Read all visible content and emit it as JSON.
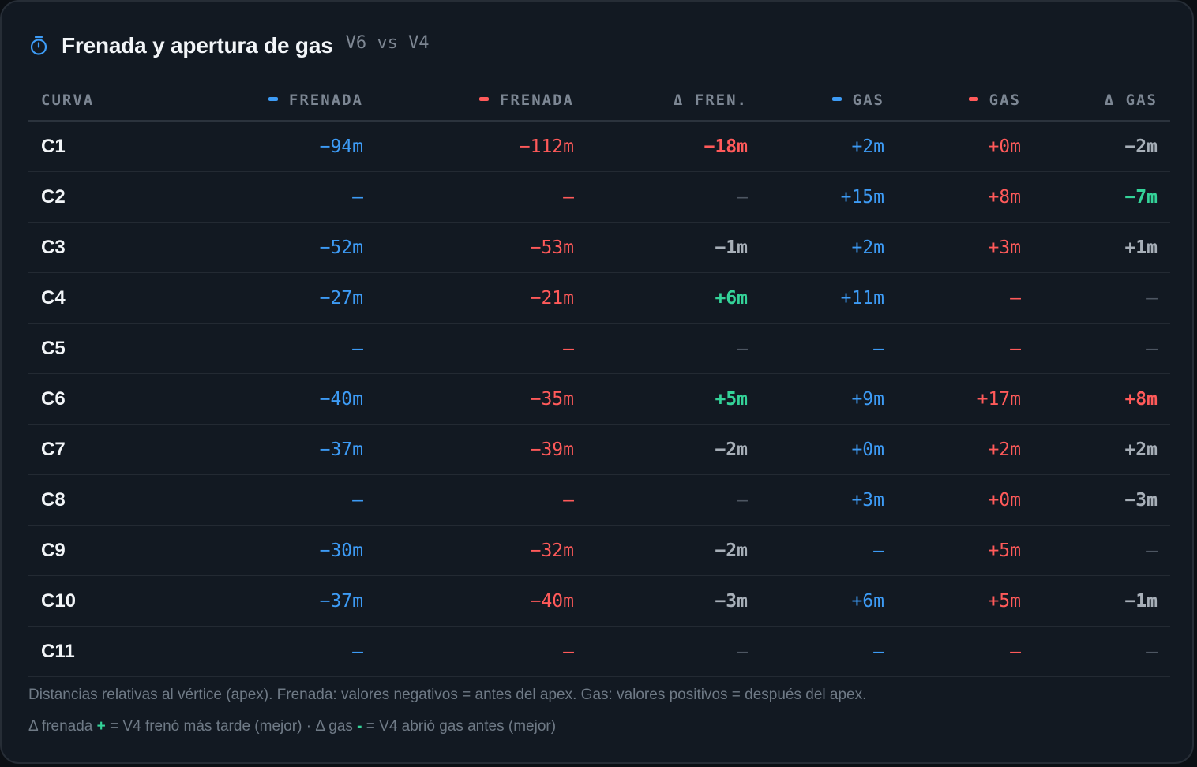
{
  "header": {
    "title": "Frenada y apertura de gas",
    "subtitle": "V6 vs V4",
    "icon": "stopwatch-icon"
  },
  "colors": {
    "blue": "#3d9bf5",
    "red": "#ff5a5a",
    "green": "#34d399",
    "gray": "#9aa3ad"
  },
  "columns": {
    "curva": "CURVA",
    "frenada_v6": "FRENADA",
    "frenada_v4": "FRENADA",
    "delta_fren": "Δ FREN.",
    "gas_v6": "GAS",
    "gas_v4": "GAS",
    "delta_gas": "Δ GAS"
  },
  "rows": [
    {
      "curve": "C1",
      "fren_v6": "−94m",
      "fren_v4": "−112m",
      "d_fren": "−18m",
      "d_fren_tone": "redbold",
      "gas_v6": "+2m",
      "gas_v4": "+0m",
      "d_gas": "−2m",
      "d_gas_tone": "graybold"
    },
    {
      "curve": "C2",
      "fren_v6": "—",
      "fren_v4": "—",
      "d_fren": "—",
      "d_fren_tone": "dim",
      "gas_v6": "+15m",
      "gas_v4": "+8m",
      "d_gas": "−7m",
      "d_gas_tone": "green"
    },
    {
      "curve": "C3",
      "fren_v6": "−52m",
      "fren_v4": "−53m",
      "d_fren": "−1m",
      "d_fren_tone": "graybold",
      "gas_v6": "+2m",
      "gas_v4": "+3m",
      "d_gas": "+1m",
      "d_gas_tone": "graybold"
    },
    {
      "curve": "C4",
      "fren_v6": "−27m",
      "fren_v4": "−21m",
      "d_fren": "+6m",
      "d_fren_tone": "green",
      "gas_v6": "+11m",
      "gas_v4": "—",
      "d_gas": "—",
      "d_gas_tone": "dim"
    },
    {
      "curve": "C5",
      "fren_v6": "—",
      "fren_v4": "—",
      "d_fren": "—",
      "d_fren_tone": "dim",
      "gas_v6": "—",
      "gas_v4": "—",
      "d_gas": "—",
      "d_gas_tone": "dim"
    },
    {
      "curve": "C6",
      "fren_v6": "−40m",
      "fren_v4": "−35m",
      "d_fren": "+5m",
      "d_fren_tone": "green",
      "gas_v6": "+9m",
      "gas_v4": "+17m",
      "d_gas": "+8m",
      "d_gas_tone": "redbold"
    },
    {
      "curve": "C7",
      "fren_v6": "−37m",
      "fren_v4": "−39m",
      "d_fren": "−2m",
      "d_fren_tone": "graybold",
      "gas_v6": "+0m",
      "gas_v4": "+2m",
      "d_gas": "+2m",
      "d_gas_tone": "graybold"
    },
    {
      "curve": "C8",
      "fren_v6": "—",
      "fren_v4": "—",
      "d_fren": "—",
      "d_fren_tone": "dim",
      "gas_v6": "+3m",
      "gas_v4": "+0m",
      "d_gas": "−3m",
      "d_gas_tone": "graybold"
    },
    {
      "curve": "C9",
      "fren_v6": "−30m",
      "fren_v4": "−32m",
      "d_fren": "−2m",
      "d_fren_tone": "graybold",
      "gas_v6": "—",
      "gas_v4": "+5m",
      "d_gas": "—",
      "d_gas_tone": "dim"
    },
    {
      "curve": "C10",
      "fren_v6": "−37m",
      "fren_v4": "−40m",
      "d_fren": "−3m",
      "d_fren_tone": "graybold",
      "gas_v6": "+6m",
      "gas_v4": "+5m",
      "d_gas": "−1m",
      "d_gas_tone": "graybold"
    },
    {
      "curve": "C11",
      "fren_v6": "—",
      "fren_v4": "—",
      "d_fren": "—",
      "d_fren_tone": "dim",
      "gas_v6": "—",
      "gas_v4": "—",
      "d_gas": "—",
      "d_gas_tone": "dim"
    }
  ],
  "footer": {
    "note": "Distancias relativas al vértice (apex). Frenada: valores negativos = antes del apex. Gas: valores positivos = después del apex.",
    "legend_part1": "Δ frenada",
    "legend_plus": "+",
    "legend_part2": "= V4 frenó más tarde (mejor) · Δ gas",
    "legend_minus": "-",
    "legend_part3": "= V4 abrió gas antes (mejor)"
  }
}
